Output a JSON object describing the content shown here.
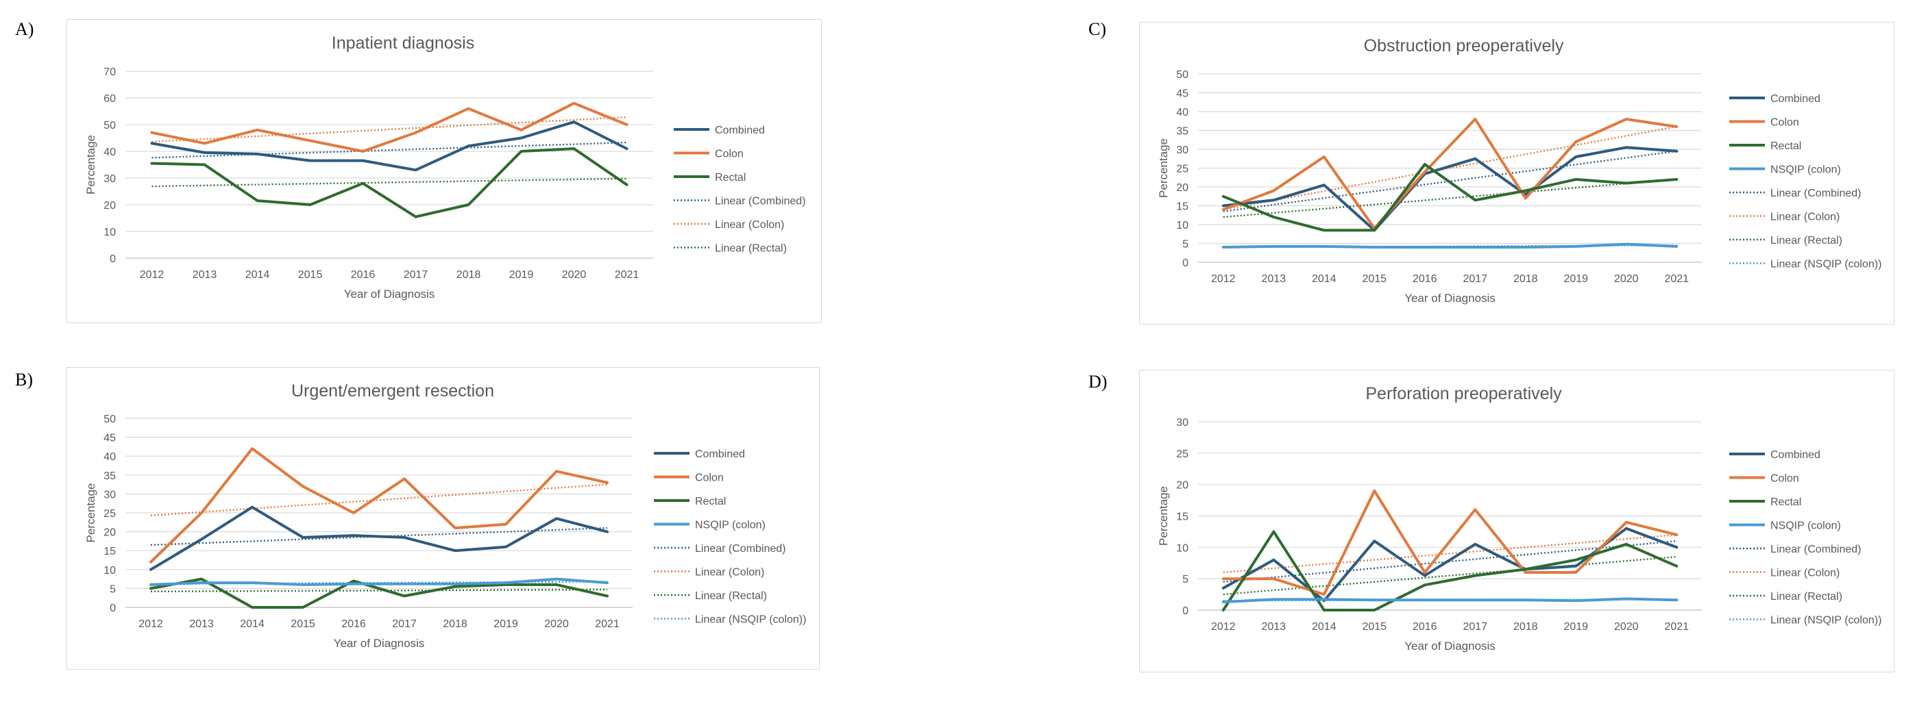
{
  "panel_labels": [
    "A)",
    "B)",
    "C)",
    "D)"
  ],
  "chart_data": [
    {
      "type": "line",
      "title": "Inpatient diagnosis",
      "xlabel": "Year of Diagnosis",
      "ylabel": "Percentage",
      "ylim": [
        0,
        70
      ],
      "yticks": [
        0,
        10,
        20,
        30,
        40,
        50,
        60,
        70
      ],
      "categories": [
        "2012",
        "2013",
        "2014",
        "2015",
        "2016",
        "2017",
        "2018",
        "2019",
        "2020",
        "2021"
      ],
      "grid": "horizontal",
      "legend_position": "right",
      "series": [
        {
          "name": "Combined",
          "color": "#2e5b7f",
          "values": [
            43,
            39.5,
            39,
            36.5,
            36.5,
            33,
            42,
            45,
            51,
            41
          ]
        },
        {
          "name": "Colon",
          "color": "#e07a3e",
          "values": [
            47,
            43,
            48,
            44,
            40,
            47,
            56,
            48,
            58,
            50
          ]
        },
        {
          "name": "Rectal",
          "color": "#2f6b2f",
          "values": [
            35.5,
            35,
            21.5,
            20,
            28,
            15.5,
            20,
            40,
            41,
            27.5
          ]
        }
      ],
      "trendlines": [
        {
          "name": "Linear (Combined)",
          "color": "#2e5b7f",
          "values": [
            37.6,
            43.3
          ]
        },
        {
          "name": "Linear (Colon)",
          "color": "#e07a3e",
          "values": [
            43.6,
            52.8
          ]
        },
        {
          "name": "Linear (Rectal)",
          "color": "#2f6b2f",
          "values": [
            26.9,
            29.8
          ]
        }
      ]
    },
    {
      "type": "line",
      "title": "Urgent/emergent resection",
      "xlabel": "Year of Diagnosis",
      "ylabel": "Percentage",
      "ylim": [
        0,
        50
      ],
      "yticks": [
        0,
        5,
        10,
        15,
        20,
        25,
        30,
        35,
        40,
        45,
        50
      ],
      "categories": [
        "2012",
        "2013",
        "2014",
        "2015",
        "2016",
        "2017",
        "2018",
        "2019",
        "2020",
        "2021"
      ],
      "grid": "horizontal",
      "legend_position": "right",
      "series": [
        {
          "name": "Combined",
          "color": "#2e5b7f",
          "values": [
            10,
            18,
            26.5,
            18.5,
            19,
            18.5,
            15,
            16,
            23.5,
            20
          ]
        },
        {
          "name": "Colon",
          "color": "#e07a3e",
          "values": [
            12,
            25,
            42,
            32,
            25,
            34,
            21,
            22,
            36,
            33
          ]
        },
        {
          "name": "Rectal",
          "color": "#2f6b2f",
          "values": [
            5,
            7.5,
            0,
            0,
            7,
            3,
            5.5,
            6,
            6,
            3
          ]
        },
        {
          "name": "NSQIP (colon)",
          "color": "#4a9bd4",
          "values": [
            6,
            6.5,
            6.5,
            6,
            6.2,
            6.2,
            6.2,
            6.5,
            7.5,
            6.5
          ]
        }
      ],
      "trendlines": [
        {
          "name": "Linear (Combined)",
          "color": "#2e5b7f",
          "values": [
            16.5,
            21
          ]
        },
        {
          "name": "Linear (Colon)",
          "color": "#e07a3e",
          "values": [
            24.3,
            32.5
          ]
        },
        {
          "name": "Linear (Rectal)",
          "color": "#2f6b2f",
          "values": [
            4.2,
            4.7
          ]
        },
        {
          "name": "Linear (NSQIP (colon))",
          "color": "#4a9bd4",
          "values": [
            6.2,
            6.8
          ]
        }
      ]
    },
    {
      "type": "line",
      "title": "Obstruction preoperatively",
      "xlabel": "Year of Diagnosis",
      "ylabel": "Percentage",
      "ylim": [
        0,
        50
      ],
      "yticks": [
        0,
        5,
        10,
        15,
        20,
        25,
        30,
        35,
        40,
        45,
        50
      ],
      "categories": [
        "2012",
        "2013",
        "2014",
        "2015",
        "2016",
        "2017",
        "2018",
        "2019",
        "2020",
        "2021"
      ],
      "grid": "horizontal",
      "legend_position": "right",
      "series": [
        {
          "name": "Combined",
          "color": "#2e5b7f",
          "values": [
            15,
            16.5,
            20.5,
            8.5,
            23.5,
            27.5,
            18,
            28,
            30.5,
            29.5
          ]
        },
        {
          "name": "Colon",
          "color": "#e07a3e",
          "values": [
            14,
            19,
            28,
            9,
            24,
            38,
            17,
            32,
            38,
            36
          ]
        },
        {
          "name": "Rectal",
          "color": "#2f6b2f",
          "values": [
            17.5,
            12,
            8.5,
            8.5,
            26,
            16.5,
            19,
            22,
            21,
            22
          ]
        },
        {
          "name": "NSQIP (colon)",
          "color": "#4a9bd4",
          "values": [
            4,
            4.2,
            4.2,
            4,
            4,
            4,
            4,
            4.2,
            4.8,
            4.2
          ]
        }
      ],
      "trendlines": [
        {
          "name": "Linear (Combined)",
          "color": "#2e5b7f",
          "values": [
            13.5,
            29.5
          ]
        },
        {
          "name": "Linear (Colon)",
          "color": "#e07a3e",
          "values": [
            14,
            36
          ]
        },
        {
          "name": "Linear (Rectal)",
          "color": "#2f6b2f",
          "values": [
            12,
            22
          ]
        },
        {
          "name": "Linear (NSQIP (colon))",
          "color": "#4a9bd4",
          "values": [
            4,
            4.5
          ]
        }
      ]
    },
    {
      "type": "line",
      "title": "Perforation preoperatively",
      "xlabel": "Year of Diagnosis",
      "ylabel": "Percentage",
      "ylim": [
        0,
        30
      ],
      "yticks": [
        0,
        5,
        10,
        15,
        20,
        25,
        30
      ],
      "categories": [
        "2012",
        "2013",
        "2014",
        "2015",
        "2016",
        "2017",
        "2018",
        "2019",
        "2020",
        "2021"
      ],
      "grid": "horizontal",
      "legend_position": "right",
      "series": [
        {
          "name": "Combined",
          "color": "#2e5b7f",
          "values": [
            3.5,
            8,
            1.5,
            11,
            5.5,
            10.5,
            6.5,
            7,
            13,
            10
          ]
        },
        {
          "name": "Colon",
          "color": "#e07a3e",
          "values": [
            5,
            5,
            2.5,
            19,
            6,
            16,
            6,
            6,
            14,
            12
          ]
        },
        {
          "name": "Rectal",
          "color": "#2f6b2f",
          "values": [
            0,
            12.5,
            0,
            0,
            4,
            5.5,
            6.5,
            8,
            10.5,
            7
          ]
        },
        {
          "name": "NSQIP (colon)",
          "color": "#4a9bd4",
          "values": [
            1.3,
            1.7,
            1.7,
            1.6,
            1.6,
            1.6,
            1.6,
            1.5,
            1.8,
            1.6
          ]
        }
      ],
      "trendlines": [
        {
          "name": "Linear (Combined)",
          "color": "#2e5b7f",
          "values": [
            4.5,
            11
          ]
        },
        {
          "name": "Linear (Colon)",
          "color": "#e07a3e",
          "values": [
            6,
            12
          ]
        },
        {
          "name": "Linear (Rectal)",
          "color": "#2f6b2f",
          "values": [
            2.5,
            8.5
          ]
        },
        {
          "name": "Linear (NSQIP (colon))",
          "color": "#4a9bd4",
          "values": [
            1.5,
            1.7
          ]
        }
      ]
    }
  ]
}
